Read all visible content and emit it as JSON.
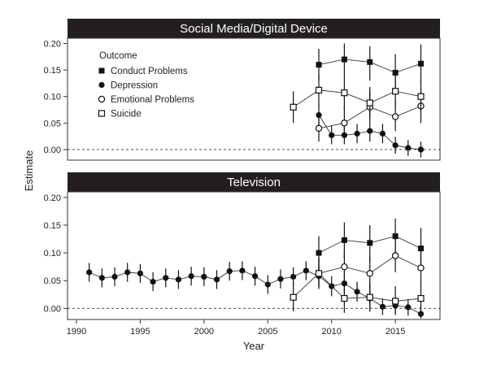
{
  "chart_data": {
    "type": "scatter",
    "ylabel": "Estimate",
    "xlabel": "Year",
    "xlim": [
      1989.3,
      2018.5
    ],
    "x_ticks": [
      1990,
      1995,
      2000,
      2005,
      2010,
      2015
    ],
    "reference_line": 0,
    "legend": {
      "title": "Outcome",
      "placement": "top-left",
      "entries": [
        {
          "label": "Conduct Problems",
          "marker": "filled-square"
        },
        {
          "label": "Depression",
          "marker": "filled-circle"
        },
        {
          "label": "Emotional Problems",
          "marker": "open-circle"
        },
        {
          "label": "Suicide",
          "marker": "open-square"
        }
      ]
    },
    "panels": [
      {
        "title": "Social Media/Digital Device",
        "ylim": [
          -0.02,
          0.21
        ],
        "y_ticks": [
          "0.00",
          "0.05",
          "0.10",
          "0.15",
          "0.20"
        ],
        "series": [
          {
            "name": "Conduct Problems",
            "marker": "filled-square",
            "connected": true,
            "points": [
              {
                "x": 2009,
                "y": 0.16,
                "lo": 0.13,
                "hi": 0.19
              },
              {
                "x": 2011,
                "y": 0.17,
                "lo": 0.14,
                "hi": 0.2
              },
              {
                "x": 2013,
                "y": 0.165,
                "lo": 0.13,
                "hi": 0.195
              },
              {
                "x": 2015,
                "y": 0.145,
                "lo": 0.11,
                "hi": 0.18
              },
              {
                "x": 2017,
                "y": 0.162,
                "lo": 0.125,
                "hi": 0.198
              }
            ]
          },
          {
            "name": "Depression",
            "marker": "filled-circle",
            "connected": true,
            "points": [
              {
                "x": 2009,
                "y": 0.065,
                "lo": 0.045,
                "hi": 0.085
              },
              {
                "x": 2010,
                "y": 0.027,
                "lo": 0.01,
                "hi": 0.045
              },
              {
                "x": 2011,
                "y": 0.027,
                "lo": 0.01,
                "hi": 0.045
              },
              {
                "x": 2012,
                "y": 0.03,
                "lo": 0.012,
                "hi": 0.048
              },
              {
                "x": 2013,
                "y": 0.035,
                "lo": 0.015,
                "hi": 0.055
              },
              {
                "x": 2014,
                "y": 0.03,
                "lo": 0.012,
                "hi": 0.048
              },
              {
                "x": 2015,
                "y": 0.008,
                "lo": -0.008,
                "hi": 0.024
              },
              {
                "x": 2016,
                "y": 0.003,
                "lo": -0.012,
                "hi": 0.018
              },
              {
                "x": 2017,
                "y": 0.0,
                "lo": -0.015,
                "hi": 0.015
              }
            ]
          },
          {
            "name": "Emotional Problems",
            "marker": "open-circle",
            "connected": true,
            "points": [
              {
                "x": 2009,
                "y": 0.04,
                "lo": 0.015,
                "hi": 0.068
              },
              {
                "x": 2011,
                "y": 0.05,
                "lo": 0.025,
                "hi": 0.08
              },
              {
                "x": 2013,
                "y": 0.08,
                "lo": 0.055,
                "hi": 0.11
              },
              {
                "x": 2015,
                "y": 0.062,
                "lo": 0.035,
                "hi": 0.095
              },
              {
                "x": 2017,
                "y": 0.082,
                "lo": 0.05,
                "hi": 0.115
              }
            ]
          },
          {
            "name": "Suicide",
            "marker": "open-square",
            "connected": true,
            "points": [
              {
                "x": 2007,
                "y": 0.08,
                "lo": 0.05,
                "hi": 0.11
              },
              {
                "x": 2009,
                "y": 0.112,
                "lo": 0.082,
                "hi": 0.142
              },
              {
                "x": 2011,
                "y": 0.107,
                "lo": 0.075,
                "hi": 0.14
              },
              {
                "x": 2013,
                "y": 0.088,
                "lo": 0.06,
                "hi": 0.118
              },
              {
                "x": 2015,
                "y": 0.11,
                "lo": 0.08,
                "hi": 0.14
              },
              {
                "x": 2017,
                "y": 0.1,
                "lo": 0.068,
                "hi": 0.132
              }
            ]
          }
        ]
      },
      {
        "title": "Television",
        "ylim": [
          -0.02,
          0.21
        ],
        "y_ticks": [
          "0.00",
          "0.05",
          "0.10",
          "0.15",
          "0.20"
        ],
        "series": [
          {
            "name": "Conduct Problems",
            "marker": "filled-square",
            "connected": true,
            "points": [
              {
                "x": 2009,
                "y": 0.1,
                "lo": 0.07,
                "hi": 0.13
              },
              {
                "x": 2011,
                "y": 0.123,
                "lo": 0.09,
                "hi": 0.155
              },
              {
                "x": 2013,
                "y": 0.118,
                "lo": 0.085,
                "hi": 0.15
              },
              {
                "x": 2015,
                "y": 0.13,
                "lo": 0.098,
                "hi": 0.162
              },
              {
                "x": 2017,
                "y": 0.108,
                "lo": 0.072,
                "hi": 0.145
              }
            ]
          },
          {
            "name": "Depression",
            "marker": "filled-circle",
            "connected": true,
            "points": [
              {
                "x": 1991,
                "y": 0.065,
                "lo": 0.048,
                "hi": 0.082
              },
              {
                "x": 1992,
                "y": 0.055,
                "lo": 0.038,
                "hi": 0.072
              },
              {
                "x": 1993,
                "y": 0.057,
                "lo": 0.04,
                "hi": 0.074
              },
              {
                "x": 1994,
                "y": 0.065,
                "lo": 0.048,
                "hi": 0.082
              },
              {
                "x": 1995,
                "y": 0.063,
                "lo": 0.046,
                "hi": 0.08
              },
              {
                "x": 1996,
                "y": 0.048,
                "lo": 0.031,
                "hi": 0.065
              },
              {
                "x": 1997,
                "y": 0.055,
                "lo": 0.038,
                "hi": 0.072
              },
              {
                "x": 1998,
                "y": 0.052,
                "lo": 0.035,
                "hi": 0.069
              },
              {
                "x": 1999,
                "y": 0.058,
                "lo": 0.041,
                "hi": 0.075
              },
              {
                "x": 2000,
                "y": 0.057,
                "lo": 0.04,
                "hi": 0.074
              },
              {
                "x": 2001,
                "y": 0.052,
                "lo": 0.035,
                "hi": 0.069
              },
              {
                "x": 2002,
                "y": 0.067,
                "lo": 0.05,
                "hi": 0.084
              },
              {
                "x": 2003,
                "y": 0.068,
                "lo": 0.051,
                "hi": 0.085
              },
              {
                "x": 2004,
                "y": 0.058,
                "lo": 0.041,
                "hi": 0.075
              },
              {
                "x": 2005,
                "y": 0.043,
                "lo": 0.026,
                "hi": 0.06
              },
              {
                "x": 2006,
                "y": 0.053,
                "lo": 0.036,
                "hi": 0.07
              },
              {
                "x": 2007,
                "y": 0.057,
                "lo": 0.04,
                "hi": 0.074
              },
              {
                "x": 2008,
                "y": 0.068,
                "lo": 0.051,
                "hi": 0.085
              },
              {
                "x": 2009,
                "y": 0.058,
                "lo": 0.04,
                "hi": 0.076
              },
              {
                "x": 2010,
                "y": 0.04,
                "lo": 0.022,
                "hi": 0.058
              },
              {
                "x": 2011,
                "y": 0.045,
                "lo": 0.027,
                "hi": 0.063
              },
              {
                "x": 2012,
                "y": 0.03,
                "lo": 0.012,
                "hi": 0.048
              },
              {
                "x": 2013,
                "y": 0.018,
                "lo": 0.0,
                "hi": 0.036
              },
              {
                "x": 2014,
                "y": 0.003,
                "lo": -0.012,
                "hi": 0.018
              },
              {
                "x": 2015,
                "y": 0.005,
                "lo": -0.01,
                "hi": 0.02
              },
              {
                "x": 2016,
                "y": 0.002,
                "lo": -0.013,
                "hi": 0.017
              },
              {
                "x": 2017,
                "y": -0.01,
                "lo": -0.018,
                "hi": 0.005
              }
            ]
          },
          {
            "name": "Emotional Problems",
            "marker": "open-circle",
            "connected": true,
            "points": [
              {
                "x": 2009,
                "y": 0.063,
                "lo": 0.038,
                "hi": 0.09
              },
              {
                "x": 2011,
                "y": 0.075,
                "lo": 0.048,
                "hi": 0.105
              },
              {
                "x": 2013,
                "y": 0.063,
                "lo": 0.035,
                "hi": 0.092
              },
              {
                "x": 2015,
                "y": 0.095,
                "lo": 0.065,
                "hi": 0.128
              },
              {
                "x": 2017,
                "y": 0.073,
                "lo": 0.042,
                "hi": 0.106
              }
            ]
          },
          {
            "name": "Suicide",
            "marker": "open-square",
            "connected": true,
            "points": [
              {
                "x": 2007,
                "y": 0.02,
                "lo": -0.005,
                "hi": 0.045
              },
              {
                "x": 2009,
                "y": 0.063,
                "lo": 0.035,
                "hi": 0.092
              },
              {
                "x": 2011,
                "y": 0.018,
                "lo": -0.008,
                "hi": 0.045
              },
              {
                "x": 2013,
                "y": 0.02,
                "lo": -0.006,
                "hi": 0.046
              },
              {
                "x": 2015,
                "y": 0.013,
                "lo": -0.012,
                "hi": 0.04
              },
              {
                "x": 2017,
                "y": 0.018,
                "lo": -0.008,
                "hi": 0.045
              }
            ]
          }
        ]
      }
    ]
  }
}
